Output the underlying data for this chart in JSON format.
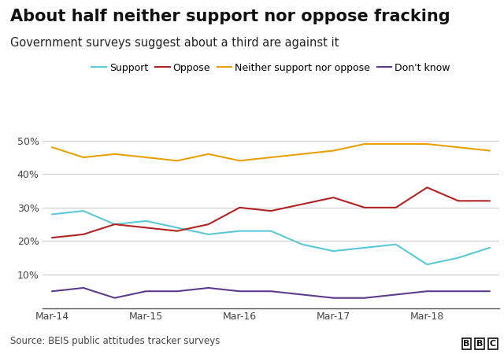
{
  "title": "About half neither support nor oppose fracking",
  "subtitle": "Government surveys suggest about a third are against it",
  "source": "Source: BEIS public attitudes tracker surveys",
  "x_ticks_major": [
    0,
    3,
    6,
    9,
    12
  ],
  "x_ticks_major_labels": [
    "Mar-14",
    "Mar-15",
    "Mar-16",
    "Mar-17",
    "Mar-18"
  ],
  "series": {
    "Support": {
      "color": "#5bc8d5",
      "values": [
        28,
        29,
        25,
        26,
        24,
        22,
        23,
        23,
        19,
        17,
        18,
        19,
        13,
        15,
        18
      ]
    },
    "Oppose": {
      "color": "#b22222",
      "values": [
        21,
        22,
        25,
        24,
        23,
        25,
        30,
        29,
        31,
        33,
        30,
        30,
        36,
        32,
        32
      ]
    },
    "Neither support nor oppose": {
      "color": "#e8a000",
      "values": [
        48,
        45,
        46,
        45,
        44,
        46,
        44,
        45,
        46,
        47,
        49,
        49,
        49,
        48,
        47
      ]
    },
    "Don't know": {
      "color": "#5c3b8a",
      "values": [
        5,
        6,
        3,
        5,
        5,
        6,
        5,
        5,
        4,
        3,
        3,
        4,
        5,
        5,
        5
      ]
    }
  },
  "ylim": [
    0,
    55
  ],
  "yticks": [
    10,
    20,
    30,
    40,
    50
  ],
  "background_color": "#ffffff",
  "grid_color": "#cccccc",
  "title_fontsize": 15,
  "subtitle_fontsize": 10.5,
  "legend_fontsize": 9,
  "tick_fontsize": 9,
  "source_fontsize": 8.5
}
